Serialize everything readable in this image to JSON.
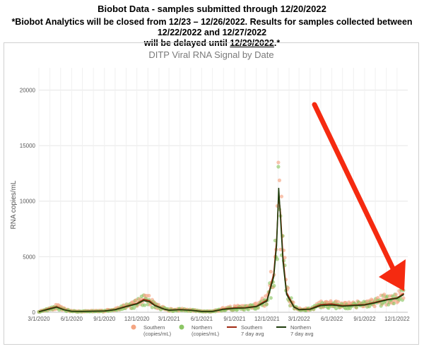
{
  "header": {
    "title": "Biobot Data - samples submitted through 12/20/2022",
    "notice_line1": "*Biobot Analytics will be closed from 12/23 – 12/26/2022. Results for samples collected between 12/22/2022 and 12/27/2022",
    "notice_line2_prefix": "will be delayed until ",
    "notice_line2_date": "12/29/2022",
    "notice_line2_suffix": ".*"
  },
  "chart_data": {
    "type": "scatter",
    "title": "DITP Viral RNA Signal by Date",
    "xlabel": "",
    "ylabel": "RNA copies/mL",
    "ylim": [
      0,
      22000
    ],
    "yticks": [
      0,
      5000,
      10000,
      15000,
      20000
    ],
    "xticks": [
      "3/1/2020",
      "6/1/2020",
      "9/1/2020",
      "12/1/2020",
      "3/1/2021",
      "6/1/2021",
      "9/1/2021",
      "12/1/2021",
      "3/1/2022",
      "6/1/2022",
      "9/1/2022",
      "12/1/2022"
    ],
    "grid": true,
    "legend_position": "bottom",
    "legend": [
      {
        "label": "Southern\n(copies/mL)",
        "kind": "dot",
        "color": "#f4a582"
      },
      {
        "label": "Northern\n(copies/mL)",
        "kind": "dot",
        "color": "#8cc665"
      },
      {
        "label": "Southern\n7 day avg",
        "kind": "line",
        "color": "#a12a12"
      },
      {
        "label": "Northern\n7 day avg",
        "kind": "line",
        "color": "#1f3d0c"
      }
    ],
    "colors": {
      "southern": "#f4a582",
      "northern": "#8cc665",
      "southern_avg": "#a12a12",
      "northern_avg": "#1f3d0c",
      "annotation_arrow": "#f52a10"
    },
    "series": [
      {
        "name": "Southern 7 day avg",
        "x": [
          "2020-03-01",
          "2020-04-01",
          "2020-04-20",
          "2020-05-10",
          "2020-06-01",
          "2020-07-01",
          "2020-08-01",
          "2020-09-01",
          "2020-10-01",
          "2020-11-01",
          "2020-12-01",
          "2020-12-20",
          "2021-01-05",
          "2021-01-20",
          "2021-02-15",
          "2021-03-01",
          "2021-04-01",
          "2021-05-01",
          "2021-06-01",
          "2021-07-01",
          "2021-08-01",
          "2021-09-01",
          "2021-10-01",
          "2021-11-01",
          "2021-12-01",
          "2021-12-20",
          "2021-12-28",
          "2022-01-03",
          "2022-01-08",
          "2022-01-15",
          "2022-01-25",
          "2022-02-15",
          "2022-03-01",
          "2022-04-01",
          "2022-05-01",
          "2022-06-01",
          "2022-07-01",
          "2022-08-01",
          "2022-09-01",
          "2022-10-01",
          "2022-11-01",
          "2022-12-01",
          "2022-12-20"
        ],
        "y": [
          50,
          350,
          500,
          250,
          90,
          80,
          100,
          120,
          250,
          550,
          800,
          1150,
          1050,
          650,
          300,
          200,
          250,
          200,
          80,
          80,
          300,
          400,
          420,
          550,
          1100,
          3500,
          6500,
          10500,
          9000,
          5000,
          1800,
          500,
          250,
          300,
          700,
          750,
          600,
          650,
          700,
          900,
          1150,
          1300,
          1700
        ]
      },
      {
        "name": "Northern 7 day avg",
        "x": [
          "2020-03-01",
          "2020-04-01",
          "2020-04-20",
          "2020-05-10",
          "2020-06-01",
          "2020-07-01",
          "2020-08-01",
          "2020-09-01",
          "2020-10-01",
          "2020-11-01",
          "2020-12-01",
          "2020-12-20",
          "2021-01-05",
          "2021-01-20",
          "2021-02-15",
          "2021-03-01",
          "2021-04-01",
          "2021-05-01",
          "2021-06-01",
          "2021-07-01",
          "2021-08-01",
          "2021-09-01",
          "2021-10-01",
          "2021-11-01",
          "2021-12-01",
          "2021-12-20",
          "2021-12-28",
          "2022-01-03",
          "2022-01-08",
          "2022-01-15",
          "2022-01-25",
          "2022-02-15",
          "2022-03-01",
          "2022-04-01",
          "2022-05-01",
          "2022-06-01",
          "2022-07-01",
          "2022-08-01",
          "2022-09-01",
          "2022-10-01",
          "2022-11-01",
          "2022-12-01",
          "2022-12-20"
        ],
        "y": [
          40,
          300,
          450,
          220,
          80,
          70,
          90,
          110,
          220,
          500,
          750,
          1050,
          950,
          600,
          280,
          180,
          220,
          180,
          70,
          70,
          260,
          350,
          380,
          500,
          1000,
          3200,
          6000,
          11200,
          8500,
          4500,
          1600,
          450,
          220,
          270,
          600,
          650,
          550,
          600,
          650,
          850,
          1100,
          1250,
          1600
        ]
      }
    ]
  }
}
